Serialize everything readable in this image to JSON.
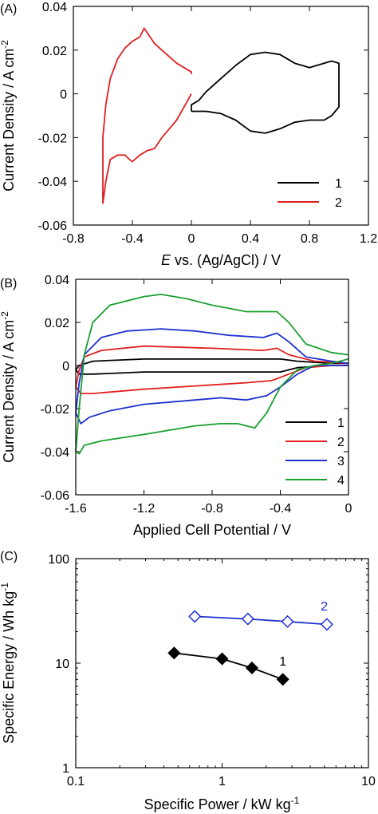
{
  "chart_data": [
    {
      "panel": "(A)",
      "type": "line",
      "xlabel_italic": "E",
      "xlabel": " vs. (Ag/AgCl) / V",
      "ylabel": "Current Density / A cm",
      "ylabel_sup": "-2",
      "xlim": [
        -0.8,
        1.2
      ],
      "ylim": [
        -0.06,
        0.04
      ],
      "xticks": [
        "-0.8",
        "-0.4",
        "0",
        "0.4",
        "0.8",
        "1.2"
      ],
      "yticks": [
        "-0.06",
        "-0.04",
        "-0.02",
        "0",
        "0.02",
        "0.04"
      ],
      "legend_position": "bottom-right",
      "series": [
        {
          "name": "1",
          "color": "#000000",
          "x": [
            0.0,
            0.1,
            0.2,
            0.3,
            0.4,
            0.5,
            0.6,
            0.7,
            0.8,
            0.9,
            0.95,
            1.0,
            1.0,
            0.95,
            0.9,
            0.8,
            0.7,
            0.6,
            0.5,
            0.4,
            0.3,
            0.2,
            0.1,
            0.05,
            0.0,
            0.0
          ],
          "y": [
            -0.008,
            -0.008,
            -0.009,
            -0.012,
            -0.017,
            -0.018,
            -0.016,
            -0.013,
            -0.012,
            -0.012,
            -0.01,
            -0.006,
            0.014,
            0.015,
            0.014,
            0.012,
            0.014,
            0.018,
            0.019,
            0.018,
            0.013,
            0.007,
            0.001,
            -0.003,
            -0.005,
            -0.008
          ]
        },
        {
          "name": "2",
          "color": "#e02020",
          "x": [
            0.0,
            0.0,
            -0.1,
            -0.2,
            -0.25,
            -0.3,
            -0.32,
            -0.35,
            -0.4,
            -0.45,
            -0.5,
            -0.55,
            -0.58,
            -0.6,
            -0.6,
            -0.58,
            -0.55,
            -0.5,
            -0.45,
            -0.42,
            -0.4,
            -0.35,
            -0.3,
            -0.25,
            -0.2,
            -0.15,
            -0.1,
            -0.05,
            0.0
          ],
          "y": [
            0.009,
            0.01,
            0.014,
            0.02,
            0.023,
            0.028,
            0.03,
            0.026,
            0.024,
            0.021,
            0.016,
            0.007,
            -0.005,
            -0.02,
            -0.05,
            -0.04,
            -0.03,
            -0.028,
            -0.028,
            -0.03,
            -0.031,
            -0.028,
            -0.026,
            -0.025,
            -0.02,
            -0.016,
            -0.012,
            -0.006,
            0.0
          ]
        }
      ]
    },
    {
      "panel": "(B)",
      "type": "line",
      "xlabel": "Applied Cell Potential / V",
      "ylabel": "Current Density / A cm",
      "ylabel_sup": "-2",
      "xlim": [
        -1.6,
        0
      ],
      "ylim": [
        -0.06,
        0.04
      ],
      "xticks": [
        "-1.6",
        "-1.2",
        "-0.8",
        "-0.4",
        "0"
      ],
      "yticks": [
        "-0.06",
        "-0.04",
        "-0.02",
        "0",
        "0.02",
        "0.04"
      ],
      "legend_position": "bottom-right",
      "series": [
        {
          "name": "1",
          "color": "#000000",
          "upper": {
            "x": [
              -1.6,
              -1.58,
              -1.5,
              -1.2,
              -0.8,
              -0.5,
              -0.4,
              -0.3,
              -0.1,
              0
            ],
            "y": [
              -0.002,
              0.0,
              0.002,
              0.003,
              0.003,
              0.003,
              0.003,
              0.002,
              0.001,
              0.001
            ]
          },
          "lower": {
            "x": [
              -1.6,
              -1.58,
              -1.5,
              -1.2,
              -0.8,
              -0.5,
              -0.4,
              -0.3,
              -0.1,
              0
            ],
            "y": [
              -0.002,
              -0.004,
              -0.004,
              -0.003,
              -0.003,
              -0.003,
              -0.003,
              -0.001,
              0.0,
              0.0
            ]
          }
        },
        {
          "name": "2",
          "color": "#e02020",
          "upper": {
            "x": [
              -1.6,
              -1.58,
              -1.55,
              -1.45,
              -1.2,
              -0.8,
              -0.5,
              -0.42,
              -0.35,
              -0.2,
              0
            ],
            "y": [
              -0.01,
              -0.002,
              0.004,
              0.007,
              0.009,
              0.008,
              0.007,
              0.008,
              0.005,
              0.002,
              0.001
            ]
          },
          "lower": {
            "x": [
              -1.6,
              -1.57,
              -1.5,
              -1.2,
              -0.8,
              -0.6,
              -0.45,
              -0.35,
              -0.25,
              -0.1,
              0
            ],
            "y": [
              -0.01,
              -0.013,
              -0.013,
              -0.011,
              -0.009,
              -0.008,
              -0.007,
              -0.004,
              -0.001,
              0.0,
              0.0
            ]
          }
        },
        {
          "name": "3",
          "color": "#1f2fd0",
          "upper": {
            "x": [
              -1.6,
              -1.58,
              -1.55,
              -1.45,
              -1.3,
              -1.1,
              -0.9,
              -0.7,
              -0.5,
              -0.42,
              -0.35,
              -0.25,
              -0.1,
              0
            ],
            "y": [
              -0.022,
              -0.008,
              0.005,
              0.013,
              0.016,
              0.017,
              0.016,
              0.014,
              0.013,
              0.015,
              0.011,
              0.004,
              0.002,
              0.001
            ]
          },
          "lower": {
            "x": [
              -1.6,
              -1.57,
              -1.52,
              -1.4,
              -1.2,
              -0.9,
              -0.75,
              -0.6,
              -0.48,
              -0.4,
              -0.3,
              -0.2,
              -0.1,
              0
            ],
            "y": [
              -0.022,
              -0.027,
              -0.024,
              -0.021,
              -0.018,
              -0.016,
              -0.015,
              -0.016,
              -0.014,
              -0.01,
              -0.004,
              0.0,
              0.0,
              0.0
            ]
          }
        },
        {
          "name": "4",
          "color": "#1aa030",
          "upper": {
            "x": [
              -1.6,
              -1.58,
              -1.55,
              -1.5,
              -1.4,
              -1.2,
              -1.1,
              -0.95,
              -0.8,
              -0.6,
              -0.5,
              -0.42,
              -0.35,
              -0.25,
              -0.1,
              0
            ],
            "y": [
              -0.04,
              -0.02,
              0.005,
              0.02,
              0.028,
              0.032,
              0.033,
              0.031,
              0.028,
              0.025,
              0.025,
              0.025,
              0.02,
              0.01,
              0.006,
              0.005
            ]
          },
          "lower": {
            "x": [
              -1.6,
              -1.58,
              -1.55,
              -1.45,
              -1.2,
              -0.9,
              -0.75,
              -0.65,
              -0.55,
              -0.48,
              -0.4,
              -0.3,
              -0.2,
              -0.1,
              0
            ],
            "y": [
              -0.04,
              -0.041,
              -0.037,
              -0.035,
              -0.032,
              -0.028,
              -0.027,
              -0.027,
              -0.029,
              -0.022,
              -0.01,
              -0.002,
              0.0,
              0.001,
              0.003
            ]
          }
        }
      ]
    },
    {
      "panel": "(C)",
      "type": "line",
      "log_x": true,
      "log_y": true,
      "xlabel": "Specific Power / kW kg",
      "xlabel_sup": "-1",
      "ylabel": "Specific Energy / Wh kg",
      "ylabel_sup": "-1",
      "xlim": [
        0.1,
        10
      ],
      "ylim": [
        1,
        100
      ],
      "xticks": [
        "0.1",
        "1",
        "10"
      ],
      "yticks": [
        "1",
        "10",
        "100"
      ],
      "series": [
        {
          "name": "1",
          "color": "#000000",
          "marker": "filled-diamond",
          "x": [
            0.47,
            1.0,
            1.6,
            2.6
          ],
          "y": [
            12.5,
            11.0,
            9.0,
            7.0
          ],
          "label_at": [
            2.6,
            9.5
          ]
        },
        {
          "name": "2",
          "color": "#1f2fd0",
          "marker": "open-diamond",
          "x": [
            0.65,
            1.5,
            2.8,
            5.2
          ],
          "y": [
            28.0,
            26.5,
            25.0,
            23.5
          ],
          "label_at": [
            5.0,
            32.0
          ]
        }
      ]
    }
  ]
}
